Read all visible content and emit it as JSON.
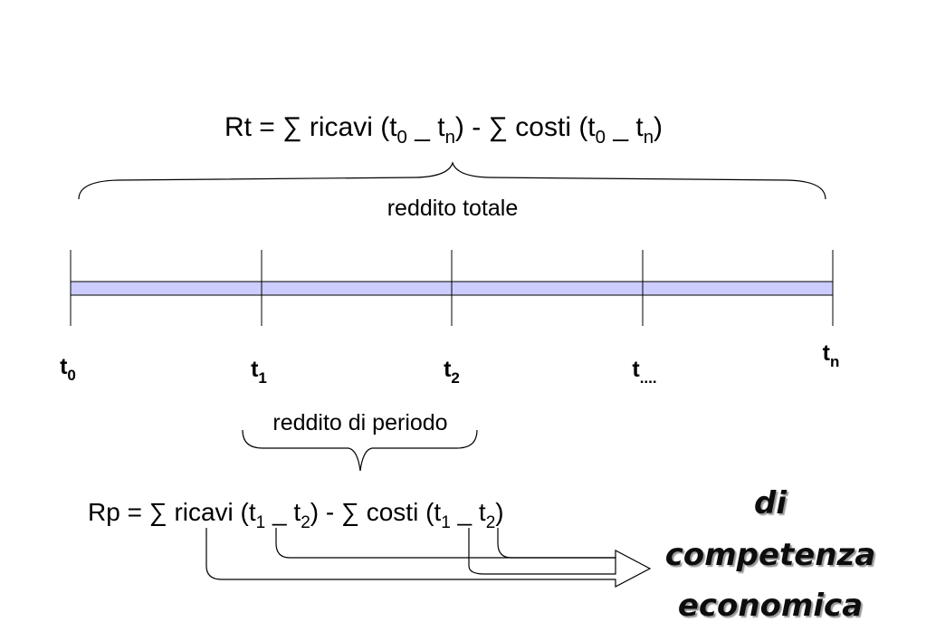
{
  "top_formula": [
    "Rt = ∑ ricavi (t",
    "0",
    " _ t",
    "n",
    ") - ∑ costi (t",
    "0",
    " _ t",
    "n",
    ")"
  ],
  "top_label": "reddito totale",
  "time_labels": [
    {
      "base": "t",
      "sub": "0"
    },
    {
      "base": "t",
      "sub": "1"
    },
    {
      "base": "t",
      "sub": "2"
    },
    {
      "base": "t",
      "sub": "...."
    },
    {
      "base": "t",
      "sub": "n"
    }
  ],
  "period_label": "reddito di periodo",
  "bottom_formula": [
    "Rp = ∑ ricavi (t",
    "1",
    " _ t",
    "2",
    ") - ∑ costi (t",
    "1",
    " _ t",
    "2",
    ")"
  ],
  "side_text": [
    "di",
    "competenza",
    "economica"
  ]
}
